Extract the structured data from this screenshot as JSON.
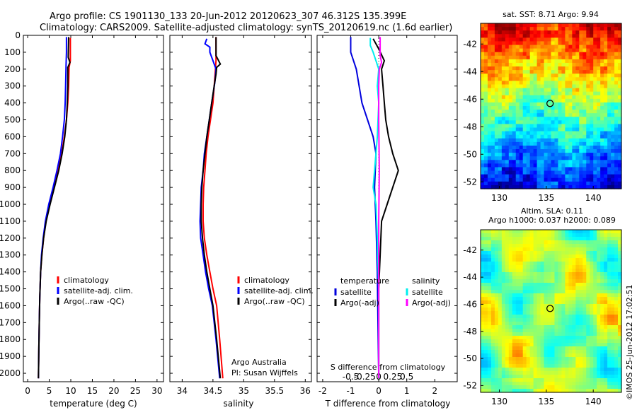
{
  "header": {
    "line1": "Argo profile: CS 1901130_133 20-Jun-2012 20120623_307 46.312S 135.399E",
    "line2": "Climatology: CARS2009. Satellite-adjusted climatology: synTS_20120619.nc (1.6d earlier)"
  },
  "colors": {
    "climatology": "#ff0000",
    "satellite": "#0000ff",
    "argo": "#000000",
    "temp_satellite_diff": "#0000dd",
    "sal_satellite_diff": "#00eeee",
    "sal_argo_diff": "#ff00ff"
  },
  "depth_axis": {
    "ylim": [
      2050,
      0
    ],
    "ticks": [
      0,
      100,
      200,
      300,
      400,
      500,
      600,
      700,
      800,
      900,
      1000,
      1100,
      1200,
      1300,
      1400,
      1500,
      1600,
      1700,
      1800,
      1900,
      2000
    ]
  },
  "chart_data": [
    {
      "type": "line",
      "id": "temperature",
      "xlabel": "temperature (deg C)",
      "xlim": [
        -1,
        31.5
      ],
      "xticks": [
        0,
        5,
        10,
        15,
        20,
        25,
        30
      ],
      "legend": [
        "climatology",
        "satellite-adj. clim.",
        "Argo(..raw -QC)"
      ],
      "series": [
        {
          "name": "climatology",
          "color": "#ff0000",
          "points": [
            [
              9.9,
              15
            ],
            [
              9.9,
              150
            ],
            [
              9.6,
              190
            ],
            [
              9.5,
              300
            ],
            [
              9.3,
              400
            ],
            [
              9.0,
              500
            ],
            [
              8.5,
              600
            ],
            [
              7.9,
              700
            ],
            [
              7.0,
              800
            ],
            [
              6.0,
              900
            ],
            [
              5.0,
              1000
            ],
            [
              4.2,
              1100
            ],
            [
              3.7,
              1200
            ],
            [
              3.3,
              1300
            ],
            [
              3.0,
              1400
            ],
            [
              2.8,
              1550
            ],
            [
              2.7,
              1700
            ],
            [
              2.6,
              1850
            ],
            [
              2.5,
              2030
            ]
          ]
        },
        {
          "name": "satellite-adj. clim.",
          "color": "#0000ff",
          "points": [
            [
              9.0,
              10
            ],
            [
              9.0,
              100
            ],
            [
              8.9,
              180
            ],
            [
              8.8,
              300
            ],
            [
              8.7,
              400
            ],
            [
              8.5,
              500
            ],
            [
              8.1,
              600
            ],
            [
              7.6,
              700
            ],
            [
              6.8,
              800
            ],
            [
              5.9,
              900
            ],
            [
              4.9,
              1000
            ],
            [
              4.1,
              1100
            ],
            [
              3.6,
              1200
            ],
            [
              3.2,
              1300
            ],
            [
              3.0,
              1400
            ],
            [
              2.8,
              1550
            ],
            [
              2.7,
              1700
            ],
            [
              2.6,
              1850
            ],
            [
              2.5,
              2030
            ]
          ]
        },
        {
          "name": "Argo(..raw -QC)",
          "color": "#000000",
          "points": [
            [
              9.5,
              10
            ],
            [
              9.4,
              130
            ],
            [
              9.8,
              160
            ],
            [
              9.3,
              190
            ],
            [
              9.3,
              300
            ],
            [
              9.2,
              400
            ],
            [
              9.0,
              500
            ],
            [
              8.6,
              600
            ],
            [
              8.0,
              700
            ],
            [
              7.2,
              800
            ],
            [
              6.2,
              900
            ],
            [
              5.2,
              1000
            ],
            [
              4.3,
              1100
            ],
            [
              3.7,
              1200
            ],
            [
              3.3,
              1300
            ],
            [
              3.0,
              1400
            ],
            [
              2.8,
              1550
            ],
            [
              2.7,
              1700
            ],
            [
              2.6,
              1850
            ],
            [
              2.5,
              2030
            ]
          ]
        }
      ]
    },
    {
      "type": "line",
      "id": "salinity",
      "xlabel": "salinity",
      "xlim": [
        33.8,
        36.1
      ],
      "xticks": [
        34,
        34.5,
        35,
        35.5,
        36
      ],
      "legend": [
        "climatology",
        "satellite-adj. clim.",
        "Argo(..raw -QC)"
      ],
      "annotation": [
        "Argo Australia",
        "PI: Susan Wijffels"
      ],
      "series": [
        {
          "name": "climatology",
          "color": "#ff0000",
          "points": [
            [
              34.55,
              10
            ],
            [
              34.55,
              150
            ],
            [
              34.53,
              250
            ],
            [
              34.5,
              400
            ],
            [
              34.46,
              500
            ],
            [
              34.42,
              600
            ],
            [
              34.39,
              700
            ],
            [
              34.37,
              800
            ],
            [
              34.35,
              900
            ],
            [
              34.34,
              1000
            ],
            [
              34.34,
              1100
            ],
            [
              34.36,
              1200
            ],
            [
              34.4,
              1300
            ],
            [
              34.45,
              1400
            ],
            [
              34.5,
              1500
            ],
            [
              34.56,
              1600
            ],
            [
              34.61,
              1800
            ],
            [
              34.66,
              2030
            ]
          ]
        },
        {
          "name": "satellite-adj. clim.",
          "color": "#0000ff",
          "points": [
            [
              34.4,
              20
            ],
            [
              34.37,
              50
            ],
            [
              34.45,
              70
            ],
            [
              34.45,
              100
            ],
            [
              34.5,
              150
            ],
            [
              34.55,
              200
            ],
            [
              34.53,
              280
            ],
            [
              34.48,
              400
            ],
            [
              34.44,
              500
            ],
            [
              34.4,
              600
            ],
            [
              34.36,
              700
            ],
            [
              34.34,
              800
            ],
            [
              34.31,
              900
            ],
            [
              34.3,
              1000
            ],
            [
              34.29,
              1100
            ],
            [
              34.3,
              1200
            ],
            [
              34.34,
              1300
            ],
            [
              34.38,
              1400
            ],
            [
              34.43,
              1500
            ],
            [
              34.49,
              1600
            ],
            [
              34.55,
              1800
            ],
            [
              34.61,
              2030
            ]
          ]
        },
        {
          "name": "Argo(..raw -QC)",
          "color": "#000000",
          "points": [
            [
              34.55,
              10
            ],
            [
              34.55,
              120
            ],
            [
              34.62,
              170
            ],
            [
              34.56,
              190
            ],
            [
              34.55,
              230
            ],
            [
              34.52,
              300
            ],
            [
              34.48,
              400
            ],
            [
              34.44,
              500
            ],
            [
              34.4,
              600
            ],
            [
              34.37,
              700
            ],
            [
              34.34,
              800
            ],
            [
              34.32,
              900
            ],
            [
              34.31,
              1000
            ],
            [
              34.31,
              1100
            ],
            [
              34.33,
              1200
            ],
            [
              34.36,
              1300
            ],
            [
              34.4,
              1400
            ],
            [
              34.45,
              1500
            ],
            [
              34.5,
              1600
            ],
            [
              34.56,
              1800
            ],
            [
              34.62,
              2030
            ]
          ]
        }
      ]
    },
    {
      "type": "line",
      "id": "difference",
      "xlabel": "T difference from climatology",
      "top_label": "S difference from climatology",
      "xlim": [
        -2.2,
        2.8
      ],
      "xticks": [
        -2,
        -1,
        0,
        1,
        2
      ],
      "s_ticks": [
        -0.5,
        -0.25,
        0,
        0.25,
        0.5
      ],
      "legend_temperature_title": "temperature",
      "legend_salinity_title": "salinity",
      "legend": [
        "satellite",
        "Argo(-adj)"
      ],
      "series": [
        {
          "name": "temperature satellite",
          "color": "#0000dd",
          "points": [
            [
              -1.0,
              10
            ],
            [
              -1.0,
              100
            ],
            [
              -0.8,
              200
            ],
            [
              -0.7,
              300
            ],
            [
              -0.6,
              400
            ],
            [
              -0.4,
              500
            ],
            [
              -0.2,
              600
            ],
            [
              -0.1,
              700
            ],
            [
              -0.15,
              900
            ],
            [
              -0.1,
              1100
            ],
            [
              -0.05,
              1400
            ],
            [
              0.0,
              2030
            ]
          ]
        },
        {
          "name": "temperature Argo(-adj)",
          "color": "#000000",
          "points": [
            [
              -0.2,
              20
            ],
            [
              0.0,
              80
            ],
            [
              0.2,
              150
            ],
            [
              0.1,
              200
            ],
            [
              0.15,
              300
            ],
            [
              0.2,
              400
            ],
            [
              0.25,
              500
            ],
            [
              0.35,
              600
            ],
            [
              0.5,
              700
            ],
            [
              0.7,
              800
            ],
            [
              0.5,
              900
            ],
            [
              0.3,
              1000
            ],
            [
              0.1,
              1100
            ],
            [
              0.05,
              1300
            ],
            [
              0.0,
              1500
            ],
            [
              0.0,
              2030
            ]
          ]
        },
        {
          "name": "salinity satellite",
          "color": "#00eeee",
          "points": [
            [
              -0.3,
              15
            ],
            [
              -0.3,
              60
            ],
            [
              -0.2,
              100
            ],
            [
              -0.1,
              150
            ],
            [
              0.0,
              200
            ],
            [
              -0.05,
              300
            ],
            [
              0.0,
              400
            ],
            [
              -0.05,
              600
            ],
            [
              -0.15,
              800
            ],
            [
              -0.2,
              900
            ],
            [
              -0.1,
              1000
            ],
            [
              -0.05,
              1200
            ],
            [
              0.0,
              1500
            ],
            [
              0.0,
              2030
            ]
          ]
        },
        {
          "name": "salinity Argo(-adj)",
          "color": "#ff00ff",
          "points": [
            [
              0.05,
              10
            ],
            [
              0.05,
              120
            ],
            [
              0.1,
              160
            ],
            [
              0.02,
              200
            ],
            [
              0.0,
              300
            ],
            [
              0.0,
              500
            ],
            [
              0.02,
              800
            ],
            [
              0.0,
              1100
            ],
            [
              0.0,
              1500
            ],
            [
              0.0,
              2030
            ]
          ]
        }
      ]
    },
    {
      "type": "heatmap",
      "id": "sst-map",
      "title": "sat. SST: 8.71  Argo: 9.94",
      "xlim": [
        128,
        143
      ],
      "ylim": [
        -52.5,
        -40.5
      ],
      "xticks": [
        130,
        135,
        140
      ],
      "yticks": [
        -42,
        -44,
        -46,
        -48,
        -50,
        -52
      ],
      "marker": [
        135.399,
        -46.312
      ]
    },
    {
      "type": "heatmap",
      "id": "sla-map",
      "title_line1": "Altim. SLA: 0.11",
      "title_line2": "Argo h1000: 0.037 h2000: 0.089",
      "xlim": [
        128,
        143
      ],
      "ylim": [
        -52.5,
        -40.5
      ],
      "xticks": [
        130,
        135,
        140
      ],
      "yticks": [
        -42,
        -44,
        -46,
        -48,
        -50,
        -52
      ],
      "marker": [
        135.399,
        -46.312
      ]
    }
  ],
  "footer": {
    "side_text": "©IMOS 25-Jun-2012 17:02:51"
  }
}
